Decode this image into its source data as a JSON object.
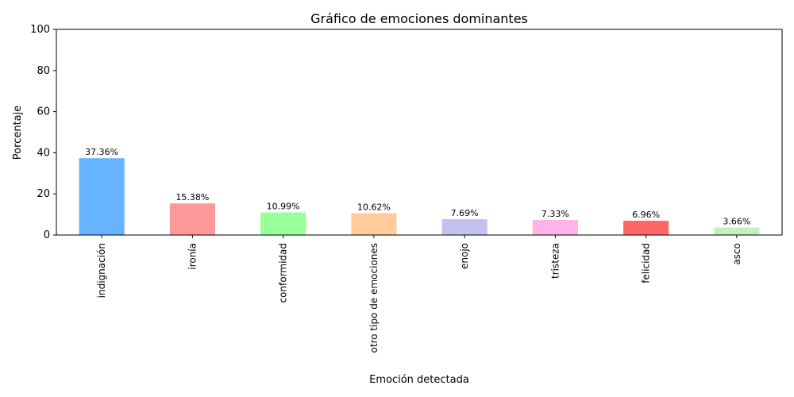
{
  "chart_data": {
    "type": "bar",
    "title": "Gráfico de emociones dominantes",
    "xlabel": "Emoción detectada",
    "ylabel": "Porcentaje",
    "ylim": [
      0,
      100
    ],
    "yticks": [
      0,
      20,
      40,
      60,
      80,
      100
    ],
    "categories": [
      "indignación",
      "ironía",
      "conformidad",
      "otro tipo de emociones",
      "enojo",
      "tristeza",
      "felicidad",
      "asco"
    ],
    "values": [
      37.36,
      15.38,
      10.99,
      10.62,
      7.69,
      7.33,
      6.96,
      3.66
    ],
    "data_labels": [
      "37.36%",
      "15.38%",
      "10.99%",
      "10.62%",
      "7.69%",
      "7.33%",
      "6.96%",
      "3.66%"
    ],
    "colors": [
      "#66b3ff",
      "#ff9999",
      "#99ff99",
      "#ffcc99",
      "#c2c2f0",
      "#ffb3e6",
      "#ff6666",
      "#c2f0c2"
    ],
    "grid": false,
    "legend": "none"
  }
}
